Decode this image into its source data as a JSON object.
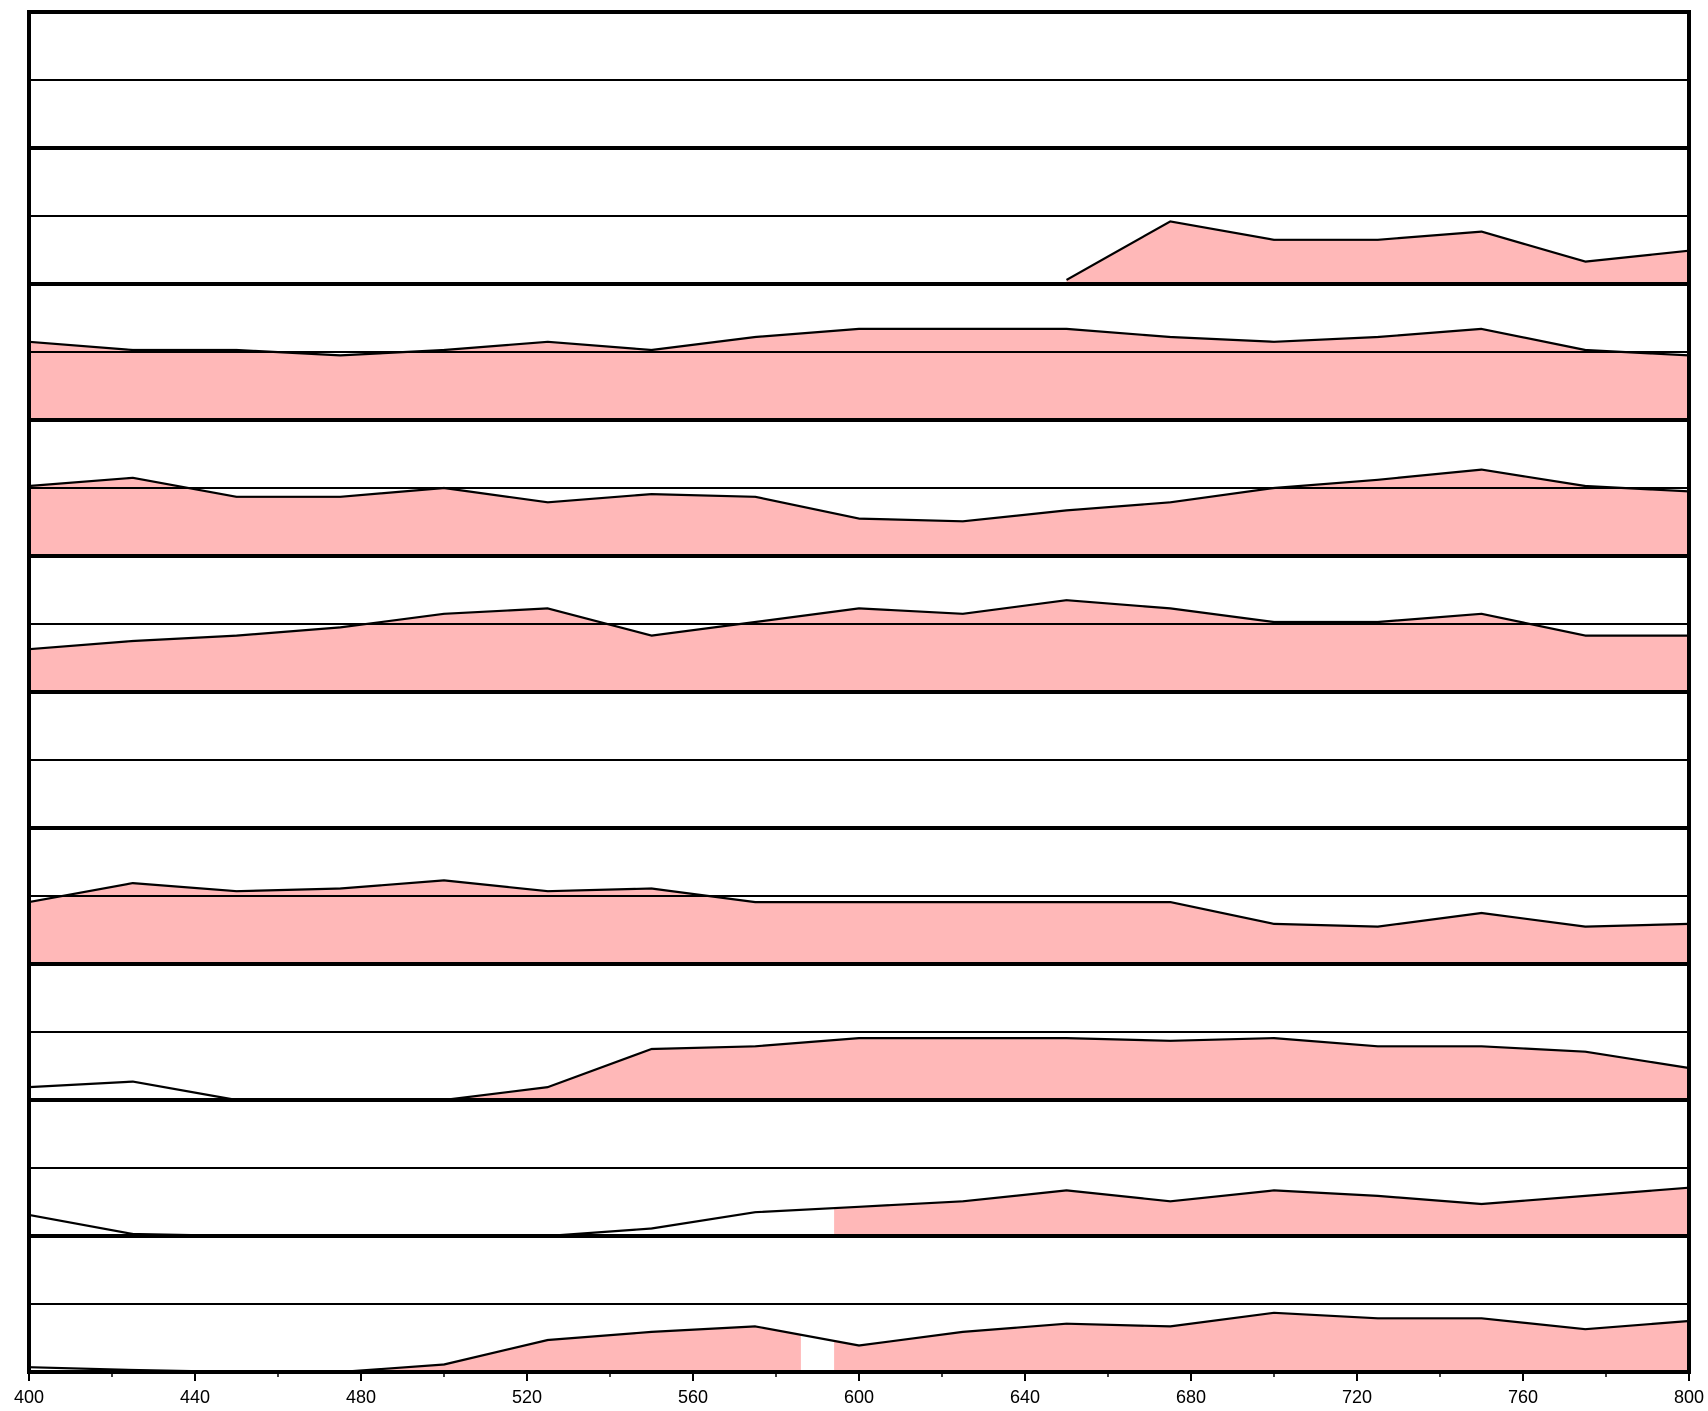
{
  "chart_data": {
    "type": "area",
    "title": "",
    "xlabel": "",
    "ylabel": "",
    "xlim": [
      400,
      800
    ],
    "x_ticks": [
      "400",
      "440",
      "480",
      "520",
      "560",
      "600",
      "640",
      "680",
      "720",
      "760",
      "800"
    ],
    "x_minor_step": 20,
    "panel_ylim": [
      0,
      2
    ],
    "reference_line": 1,
    "x": [
      400,
      425,
      450,
      475,
      500,
      525,
      550,
      575,
      600,
      625,
      650,
      675,
      700,
      725,
      750,
      775,
      800
    ],
    "fill_color": "#ffb8b8",
    "line_color": "#000000",
    "panels": [
      {
        "values": [
          null,
          null,
          null,
          null,
          null,
          null,
          null,
          null,
          null,
          null,
          null,
          null,
          null,
          null,
          null,
          null,
          null
        ],
        "fill_start": null
      },
      {
        "values": [
          null,
          null,
          null,
          null,
          null,
          null,
          null,
          null,
          null,
          null,
          0.06,
          0.92,
          0.65,
          0.65,
          0.77,
          0.33,
          0.49
        ],
        "fill_start": 626
      },
      {
        "values": [
          1.15,
          1.03,
          1.03,
          0.95,
          1.03,
          1.15,
          1.03,
          1.22,
          1.34,
          1.34,
          1.34,
          1.22,
          1.15,
          1.22,
          1.34,
          1.03,
          0.95
        ],
        "fill_start": 400
      },
      {
        "values": [
          1.03,
          1.15,
          0.87,
          0.87,
          1.0,
          0.79,
          0.91,
          0.87,
          0.55,
          0.51,
          0.67,
          0.79,
          1.0,
          1.12,
          1.27,
          1.03,
          0.95
        ],
        "fill_start": 400
      },
      {
        "values": [
          0.63,
          0.75,
          0.83,
          0.95,
          1.15,
          1.23,
          0.83,
          1.03,
          1.23,
          1.15,
          1.35,
          1.23,
          1.03,
          1.03,
          1.15,
          0.83,
          0.83
        ],
        "fill_start": 400
      },
      {
        "values": [
          null,
          null,
          null,
          null,
          null,
          null,
          null,
          null,
          null,
          null,
          null,
          null,
          null,
          null,
          null,
          null,
          null
        ],
        "fill_start": null
      },
      {
        "values": [
          0.91,
          1.19,
          1.07,
          1.11,
          1.23,
          1.07,
          1.11,
          0.91,
          0.91,
          0.91,
          0.91,
          0.91,
          0.59,
          0.55,
          0.75,
          0.55,
          0.59
        ],
        "fill_start": 400
      },
      {
        "values": [
          0.19,
          0.27,
          0.0,
          0.0,
          0.0,
          0.19,
          0.75,
          0.79,
          0.91,
          0.91,
          0.91,
          0.87,
          0.91,
          0.79,
          0.79,
          0.71,
          0.47
        ],
        "fill_start": 495
      },
      {
        "values": [
          0.31,
          0.03,
          0.0,
          0.0,
          0.0,
          0.0,
          0.11,
          0.35,
          0.43,
          0.51,
          0.67,
          0.51,
          0.67,
          0.59,
          0.47,
          0.59,
          0.71
        ],
        "fill_start": 594
      },
      {
        "values": [
          0.07,
          0.03,
          0.0,
          0.0,
          0.11,
          0.47,
          0.59,
          0.67,
          0.39,
          0.59,
          0.71,
          0.67,
          0.87,
          0.79,
          0.79,
          0.63,
          0.75
        ],
        "fill_start": 484,
        "fill_gap": [
          586,
          594
        ]
      }
    ]
  }
}
